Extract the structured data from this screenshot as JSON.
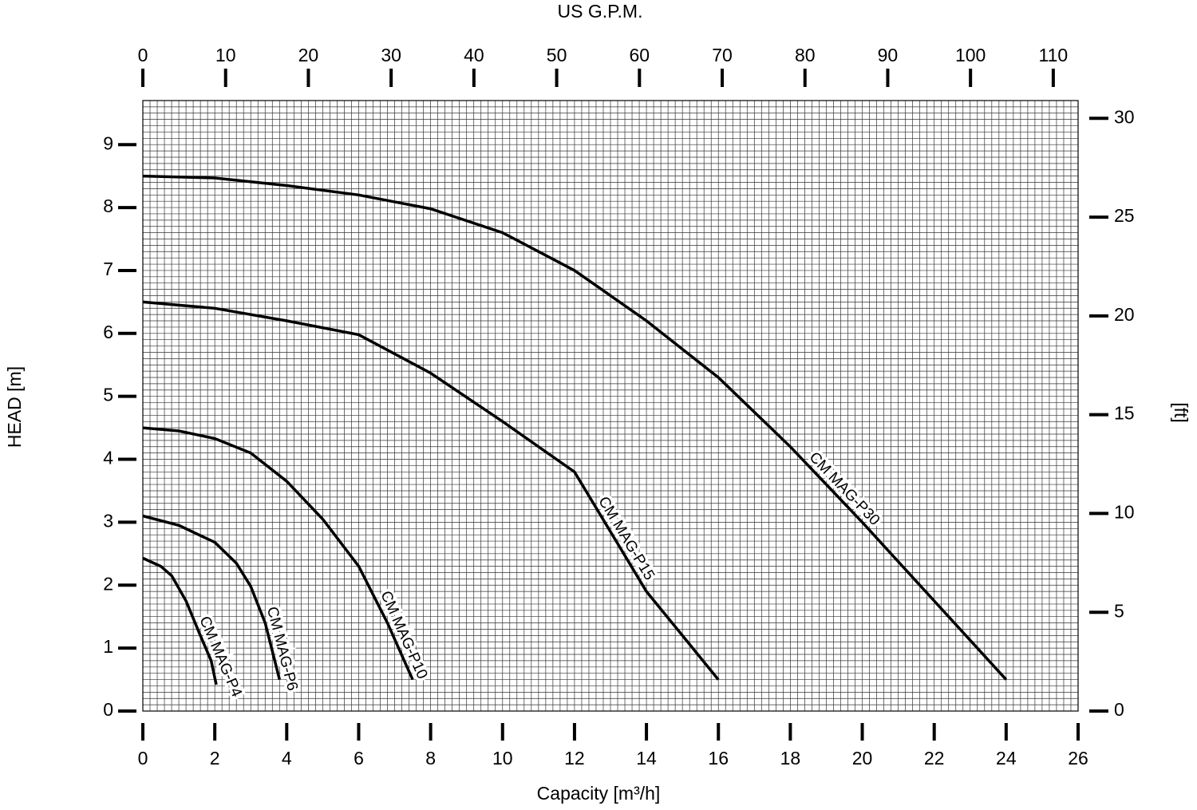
{
  "chart_data": {
    "type": "line",
    "title": "US G.P.M.",
    "x_label": "Capacity [m³/h]",
    "y_label": "HEAD [m]",
    "y2_label": "[ft]",
    "xlim": [
      0,
      26
    ],
    "xticks": [
      0,
      2,
      4,
      6,
      8,
      10,
      12,
      14,
      16,
      18,
      20,
      22,
      24,
      26
    ],
    "ylim": [
      0,
      9.7
    ],
    "yticks": [
      0,
      1,
      2,
      3,
      4,
      5,
      6,
      7,
      8,
      9
    ],
    "x2lim": [
      0,
      113
    ],
    "x2ticks": [
      0,
      10,
      20,
      30,
      40,
      50,
      60,
      70,
      80,
      90,
      100,
      110
    ],
    "y2lim": [
      0,
      30.9
    ],
    "y2ticks": [
      0,
      5,
      10,
      15,
      20,
      25,
      30
    ],
    "minor_grid": {
      "x": 0.2,
      "y": 0.1
    },
    "series": [
      {
        "name": "CM MAG-P4",
        "color": "#000000",
        "x": [
          0,
          0.5,
          0.8,
          1.2,
          1.6,
          1.9,
          2.04
        ],
        "values": [
          2.43,
          2.3,
          2.15,
          1.75,
          1.2,
          0.8,
          0.42
        ]
      },
      {
        "name": "CM MAG-P6",
        "color": "#000000",
        "x": [
          0,
          1,
          2,
          2.6,
          3,
          3.4,
          3.8
        ],
        "values": [
          3.1,
          2.95,
          2.68,
          2.35,
          1.98,
          1.4,
          0.5
        ]
      },
      {
        "name": "CM MAG-P10",
        "color": "#000000",
        "x": [
          0,
          1,
          2,
          3,
          4,
          5,
          6,
          6.8,
          7.5
        ],
        "values": [
          4.5,
          4.45,
          4.33,
          4.1,
          3.65,
          3.05,
          2.3,
          1.4,
          0.5
        ]
      },
      {
        "name": "CM MAG-P15",
        "color": "#000000",
        "x": [
          0,
          2,
          4,
          6,
          8,
          10,
          12,
          14,
          15,
          16
        ],
        "values": [
          6.5,
          6.4,
          6.2,
          5.98,
          5.37,
          4.6,
          3.8,
          1.9,
          1.2,
          0.5
        ]
      },
      {
        "name": "CM MAG-P30",
        "color": "#000000",
        "x": [
          0,
          2,
          4,
          6,
          8,
          10,
          12,
          14,
          16,
          18,
          20,
          22,
          24
        ],
        "values": [
          8.5,
          8.47,
          8.35,
          8.2,
          7.98,
          7.6,
          7.0,
          6.2,
          5.3,
          4.2,
          3.0,
          1.75,
          0.5
        ]
      }
    ]
  }
}
